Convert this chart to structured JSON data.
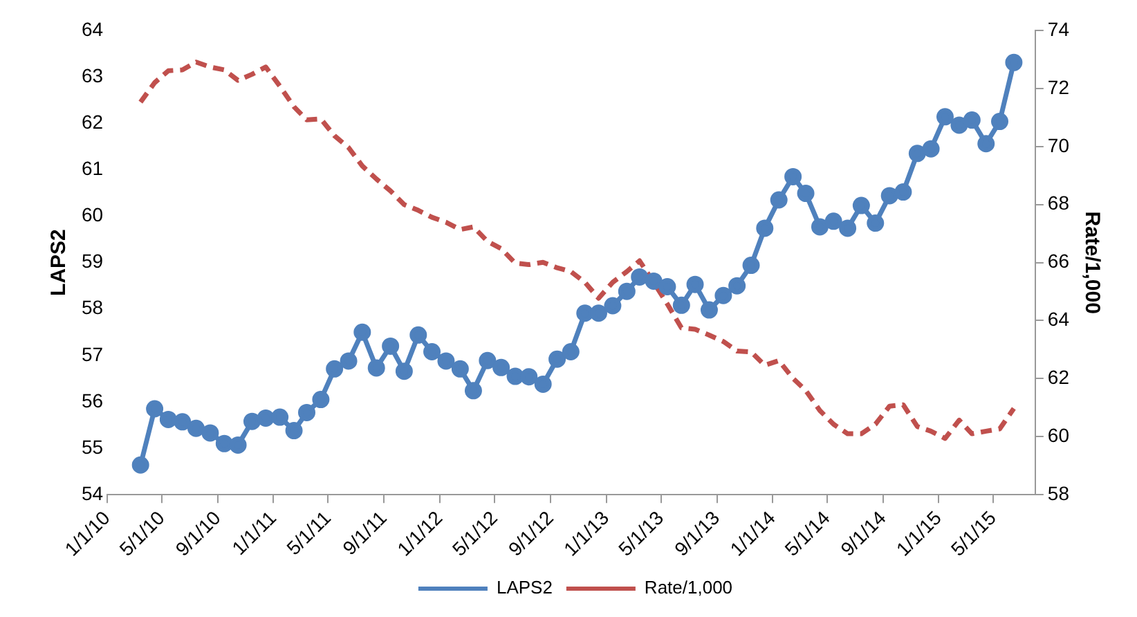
{
  "chart_data": {
    "type": "line",
    "ylabel": "LAPS2",
    "y2label": "Rate/1,000",
    "x": [
      "2010-03-15",
      "2010-04-15",
      "2010-05-15",
      "2010-06-15",
      "2010-07-15",
      "2010-08-15",
      "2010-09-15",
      "2010-10-15",
      "2010-11-15",
      "2010-12-15",
      "2011-01-15",
      "2011-02-15",
      "2011-03-15",
      "2011-04-15",
      "2011-05-15",
      "2011-06-15",
      "2011-07-15",
      "2011-08-15",
      "2011-09-15",
      "2011-10-15",
      "2011-11-15",
      "2011-12-15",
      "2012-01-15",
      "2012-02-15",
      "2012-03-15",
      "2012-04-15",
      "2012-05-15",
      "2012-06-15",
      "2012-07-15",
      "2012-08-15",
      "2012-09-15",
      "2012-10-15",
      "2012-11-15",
      "2012-12-15",
      "2013-01-15",
      "2013-02-15",
      "2013-03-15",
      "2013-04-15",
      "2013-05-15",
      "2013-06-15",
      "2013-07-15",
      "2013-08-15",
      "2013-09-15",
      "2013-10-15",
      "2013-11-15",
      "2013-12-15",
      "2014-01-15",
      "2014-02-15",
      "2014-03-15",
      "2014-04-15",
      "2014-05-15",
      "2014-06-15",
      "2014-07-15",
      "2014-08-15",
      "2014-09-15",
      "2014-10-15",
      "2014-11-15",
      "2014-12-15",
      "2015-01-15",
      "2015-02-15",
      "2015-03-15",
      "2015-04-15",
      "2015-05-15",
      "2015-06-15"
    ],
    "series": [
      {
        "name": "LAPS2",
        "color": "#4f81bd",
        "type": "line",
        "marker": "circle",
        "line_style": "solid",
        "values": [
          54.64,
          55.85,
          55.62,
          55.57,
          55.43,
          55.33,
          55.1,
          55.07,
          55.58,
          55.65,
          55.67,
          55.38,
          55.77,
          56.05,
          56.71,
          56.88,
          57.5,
          56.73,
          57.2,
          56.66,
          57.44,
          57.08,
          56.88,
          56.71,
          56.24,
          56.89,
          56.74,
          56.55,
          56.54,
          56.38,
          56.92,
          57.08,
          57.91,
          57.91,
          58.07,
          58.38,
          58.69,
          58.6,
          58.48,
          58.08,
          58.53,
          57.98,
          58.29,
          58.5,
          58.94,
          59.74,
          60.35,
          60.85,
          60.49,
          59.77,
          59.89,
          59.74,
          60.23,
          59.85,
          60.44,
          60.52,
          61.35,
          61.45,
          62.14,
          61.96,
          62.07,
          61.56,
          62.04,
          63.31
        ]
      },
      {
        "name": "Rate/1,000",
        "color": "#c0504d",
        "type": "line",
        "axis": "y2",
        "marker": "none",
        "line_style": "dashed",
        "values": [
          71.53,
          72.2,
          72.61,
          72.64,
          72.91,
          72.74,
          72.64,
          72.28,
          72.49,
          72.74,
          72.08,
          71.37,
          70.92,
          70.95,
          70.37,
          69.96,
          69.33,
          68.88,
          68.47,
          68.0,
          67.8,
          67.56,
          67.39,
          67.14,
          67.23,
          66.73,
          66.48,
          65.98,
          65.93,
          66.01,
          65.82,
          65.69,
          65.32,
          64.77,
          65.32,
          65.69,
          66.06,
          65.32,
          64.57,
          63.75,
          63.7,
          63.5,
          63.28,
          62.95,
          62.92,
          62.46,
          62.62,
          62.01,
          61.59,
          60.9,
          60.43,
          60.1,
          60.1,
          60.43,
          61.05,
          61.1,
          60.35,
          60.19,
          59.94,
          60.57,
          60.1,
          60.19,
          60.27,
          60.97
        ]
      }
    ],
    "xlim": [
      "2010-01-01",
      "2015-08-01"
    ],
    "xticks": [
      {
        "value": "2010-01-01",
        "label": "1/1/10"
      },
      {
        "value": "2010-05-01",
        "label": "5/1/10"
      },
      {
        "value": "2010-09-01",
        "label": "9/1/10"
      },
      {
        "value": "2011-01-01",
        "label": "1/1/11"
      },
      {
        "value": "2011-05-01",
        "label": "5/1/11"
      },
      {
        "value": "2011-09-01",
        "label": "9/1/11"
      },
      {
        "value": "2012-01-01",
        "label": "1/1/12"
      },
      {
        "value": "2012-05-01",
        "label": "5/1/12"
      },
      {
        "value": "2012-09-01",
        "label": "9/1/12"
      },
      {
        "value": "2013-01-01",
        "label": "1/1/13"
      },
      {
        "value": "2013-05-01",
        "label": "5/1/13"
      },
      {
        "value": "2013-09-01",
        "label": "9/1/13"
      },
      {
        "value": "2014-01-01",
        "label": "1/1/14"
      },
      {
        "value": "2014-05-01",
        "label": "5/1/14"
      },
      {
        "value": "2014-09-01",
        "label": "9/1/14"
      },
      {
        "value": "2015-01-01",
        "label": "1/1/15"
      },
      {
        "value": "2015-05-01",
        "label": "5/1/15"
      }
    ],
    "ylim": [
      54,
      64
    ],
    "yticks": [
      54,
      55,
      56,
      57,
      58,
      59,
      60,
      61,
      62,
      63,
      64
    ],
    "y2lim": [
      58,
      74
    ],
    "y2ticks": [
      58,
      60,
      62,
      64,
      66,
      68,
      70,
      72,
      74
    ],
    "grid": false,
    "legend": "bottom"
  }
}
